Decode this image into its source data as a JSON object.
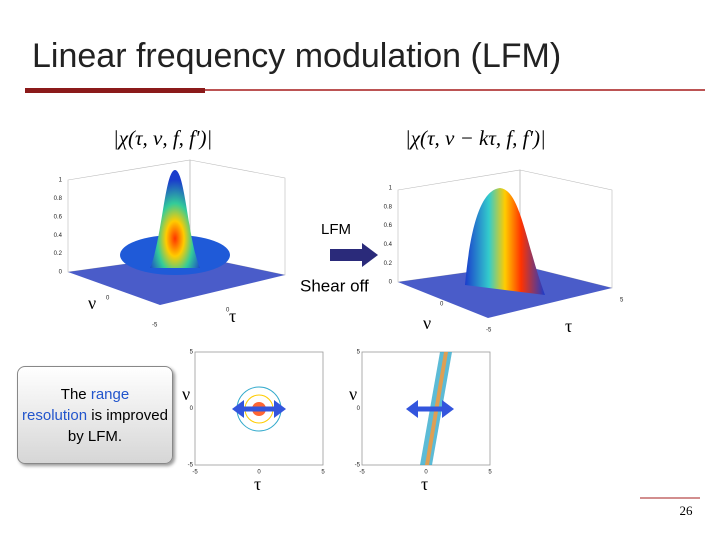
{
  "title": "Linear frequency modulation (LFM)",
  "plots": [
    {
      "formula": "|χ(τ, ν, f, f')|",
      "x_axis": "τ",
      "y_axis": "ν",
      "z_ticks": [
        0,
        0.2,
        0.4,
        0.6,
        0.8,
        1
      ],
      "floor_ticks": [
        0,
        -5,
        0
      ]
    },
    {
      "formula": "|χ(τ, ν − kτ, f, f')|",
      "x_axis": "τ",
      "y_axis": "ν",
      "z_ticks": [
        0,
        0.2,
        0.4,
        0.6,
        0.8,
        1
      ],
      "floor_ticks": [
        0,
        -5,
        5
      ]
    }
  ],
  "arrow": {
    "label": "LFM",
    "caption": "Shear off"
  },
  "contours": [
    {
      "x_axis": "τ",
      "y_axis": "ν",
      "ticks": [
        5,
        0,
        -5
      ]
    },
    {
      "x_axis": "τ",
      "y_axis": "ν",
      "ticks": [
        5,
        0,
        -5
      ]
    }
  ],
  "callout": {
    "parts": [
      "The",
      "range",
      "resolution",
      "is improved by LFM."
    ]
  },
  "page_number": "26"
}
